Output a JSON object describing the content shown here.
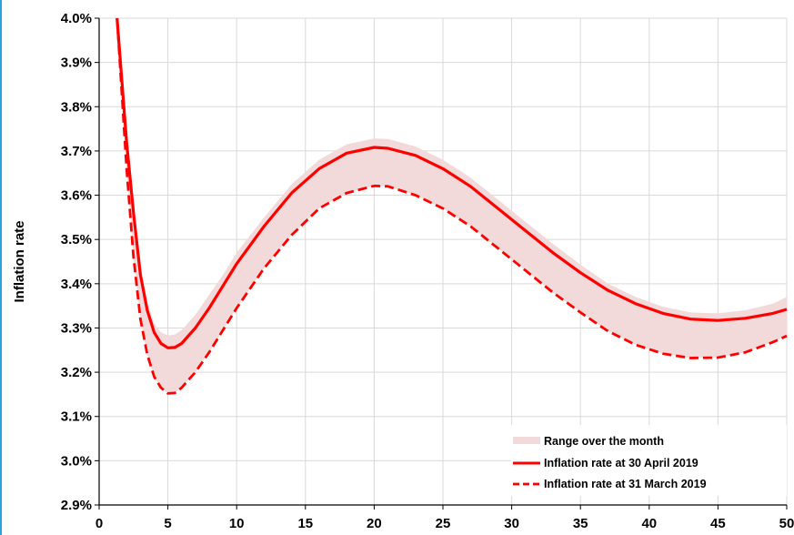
{
  "chart_data": {
    "type": "line",
    "title": "",
    "xlabel": "",
    "ylabel": "Inflation rate",
    "xlim": [
      0,
      50
    ],
    "ylim": [
      2.9,
      4.0
    ],
    "x_ticks": [
      "0",
      "5",
      "10",
      "15",
      "20",
      "25",
      "30",
      "35",
      "40",
      "45",
      "50"
    ],
    "y_ticks": [
      "2.9%",
      "3.0%",
      "3.1%",
      "3.2%",
      "3.3%",
      "3.4%",
      "3.5%",
      "3.6%",
      "3.7%",
      "3.8%",
      "3.9%",
      "4.0%"
    ],
    "grid": true,
    "legend_position": "bottom-right",
    "colors": {
      "line": "#ff0000",
      "band": "#f2d9da",
      "grid": "#d9d9d9",
      "frame_border": "#2aa3d8"
    },
    "legend": [
      "Range over the month",
      "Inflation rate at 30 April 2019",
      "Inflation rate at 31 March 2019"
    ],
    "series": [
      {
        "name": "Inflation rate at 30 April 2019",
        "style": "solid",
        "x": [
          1.3,
          2,
          2.5,
          3,
          3.5,
          4,
          4.5,
          5,
          5.5,
          6,
          7,
          8,
          9,
          10,
          12,
          14,
          16,
          18,
          20,
          21,
          23,
          25,
          27,
          29,
          31,
          33,
          35,
          37,
          39,
          41,
          43,
          45,
          47,
          49,
          50
        ],
        "y": [
          4.0,
          3.72,
          3.56,
          3.42,
          3.34,
          3.29,
          3.265,
          3.255,
          3.256,
          3.265,
          3.3,
          3.345,
          3.395,
          3.445,
          3.53,
          3.605,
          3.66,
          3.695,
          3.708,
          3.706,
          3.69,
          3.66,
          3.62,
          3.57,
          3.52,
          3.47,
          3.425,
          3.385,
          3.355,
          3.333,
          3.32,
          3.317,
          3.322,
          3.333,
          3.342
        ]
      },
      {
        "name": "Inflation rate at 31 March 2019",
        "style": "dashed",
        "x": [
          1.3,
          2,
          2.5,
          3,
          3.5,
          4,
          4.5,
          5,
          5.5,
          6,
          7,
          8,
          9,
          10,
          12,
          14,
          16,
          18,
          20,
          21,
          23,
          25,
          27,
          29,
          31,
          33,
          35,
          37,
          39,
          41,
          43,
          45,
          47,
          49,
          50
        ],
        "y": [
          4.0,
          3.66,
          3.46,
          3.32,
          3.24,
          3.19,
          3.165,
          3.152,
          3.153,
          3.165,
          3.2,
          3.245,
          3.295,
          3.345,
          3.435,
          3.51,
          3.57,
          3.605,
          3.621,
          3.62,
          3.6,
          3.57,
          3.53,
          3.48,
          3.43,
          3.38,
          3.335,
          3.293,
          3.262,
          3.242,
          3.232,
          3.233,
          3.245,
          3.268,
          3.282
        ]
      }
    ],
    "band": {
      "name": "Range over the month",
      "x": [
        1.3,
        2,
        2.5,
        3,
        3.5,
        4,
        4.5,
        5,
        5.5,
        6,
        7,
        8,
        9,
        10,
        12,
        14,
        16,
        18,
        20,
        21,
        23,
        25,
        27,
        29,
        31,
        33,
        35,
        37,
        39,
        41,
        43,
        45,
        47,
        49,
        50
      ],
      "upper": [
        4.0,
        3.74,
        3.58,
        3.44,
        3.36,
        3.31,
        3.29,
        3.283,
        3.285,
        3.295,
        3.33,
        3.375,
        3.42,
        3.47,
        3.55,
        3.625,
        3.68,
        3.715,
        3.728,
        3.727,
        3.71,
        3.68,
        3.64,
        3.59,
        3.54,
        3.49,
        3.443,
        3.4,
        3.37,
        3.348,
        3.335,
        3.333,
        3.34,
        3.355,
        3.37
      ],
      "lower": [
        4.0,
        3.66,
        3.46,
        3.32,
        3.24,
        3.19,
        3.165,
        3.152,
        3.153,
        3.165,
        3.2,
        3.245,
        3.295,
        3.345,
        3.435,
        3.51,
        3.57,
        3.605,
        3.621,
        3.62,
        3.6,
        3.57,
        3.53,
        3.48,
        3.43,
        3.38,
        3.335,
        3.293,
        3.262,
        3.242,
        3.232,
        3.233,
        3.245,
        3.268,
        3.282
      ]
    }
  }
}
